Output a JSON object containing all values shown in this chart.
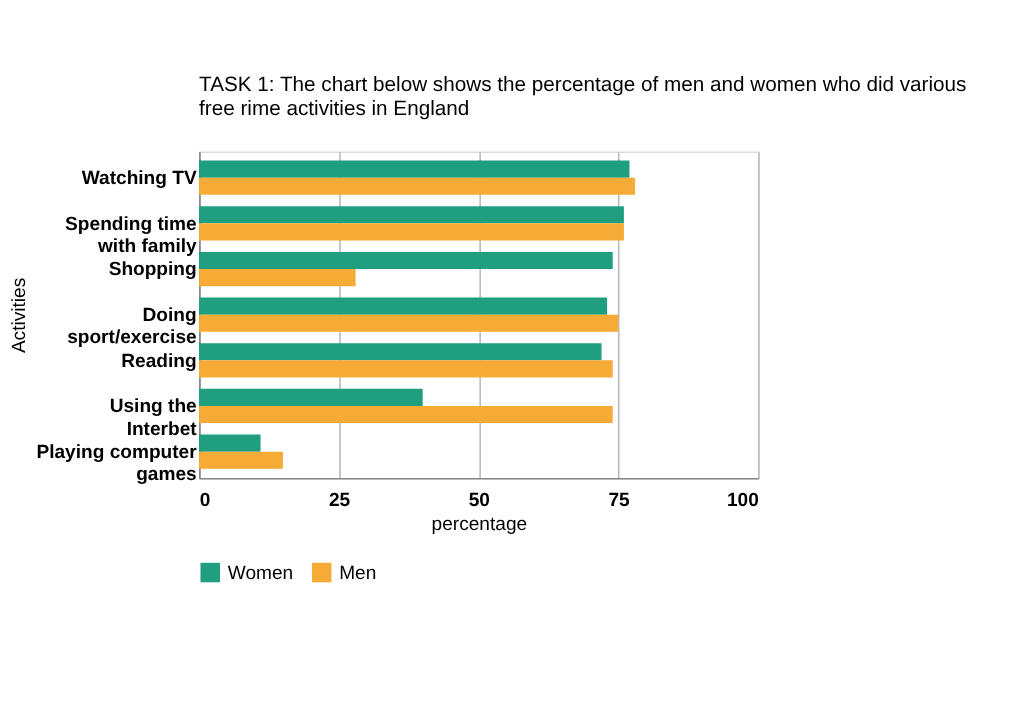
{
  "chart_data": {
    "type": "bar",
    "orientation": "horizontal",
    "title": [
      "TASK 1: The chart below shows the percentage of men and women who did various",
      "free rime activities in England"
    ],
    "xlabel": "percentage",
    "ylabel": "Activities",
    "categories": [
      "Watching TV",
      "Spending time with family",
      "Shopping",
      "Doing sport/exercise",
      "Reading",
      "Using the Interbet",
      "Playing computer games"
    ],
    "series": [
      {
        "name": "Women",
        "color": "#1f9e80",
        "values": [
          77,
          76,
          74,
          73,
          72,
          40,
          11
        ]
      },
      {
        "name": "Men",
        "color": "#f5ab35",
        "values": [
          78,
          76,
          28,
          75,
          74,
          74,
          15
        ]
      }
    ],
    "xlim": [
      0,
      100
    ],
    "xticks": [
      0,
      25,
      50,
      75,
      100
    ],
    "grid": "x",
    "legend": "bottom"
  }
}
